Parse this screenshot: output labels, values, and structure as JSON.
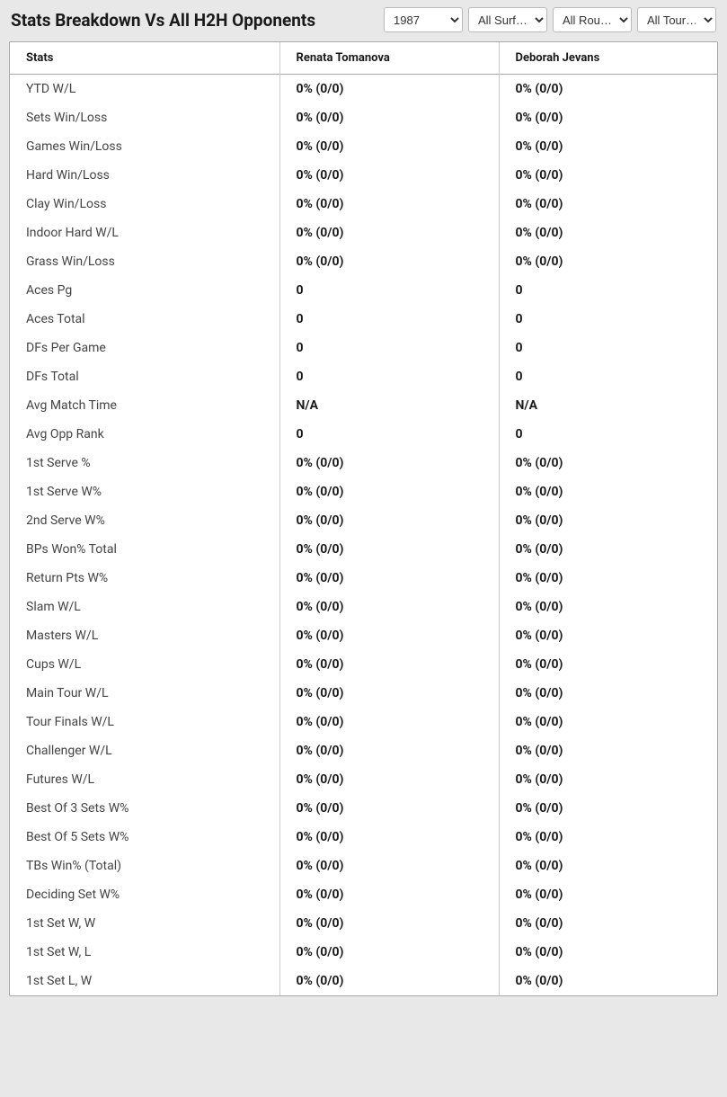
{
  "header": {
    "title": "Stats Breakdown Vs All H2H Opponents"
  },
  "filters": {
    "year": "1987",
    "surface": "All Surf…",
    "round": "All Rou…",
    "tournament": "All Tour…"
  },
  "table": {
    "columns": [
      "Stats",
      "Renata Tomanova",
      "Deborah Jevans"
    ],
    "rows": [
      {
        "stat": "YTD W/L",
        "p1": "0% (0/0)",
        "p2": "0% (0/0)"
      },
      {
        "stat": "Sets Win/Loss",
        "p1": "0% (0/0)",
        "p2": "0% (0/0)"
      },
      {
        "stat": "Games Win/Loss",
        "p1": "0% (0/0)",
        "p2": "0% (0/0)"
      },
      {
        "stat": "Hard Win/Loss",
        "p1": "0% (0/0)",
        "p2": "0% (0/0)"
      },
      {
        "stat": "Clay Win/Loss",
        "p1": "0% (0/0)",
        "p2": "0% (0/0)"
      },
      {
        "stat": "Indoor Hard W/L",
        "p1": "0% (0/0)",
        "p2": "0% (0/0)"
      },
      {
        "stat": "Grass Win/Loss",
        "p1": "0% (0/0)",
        "p2": "0% (0/0)"
      },
      {
        "stat": "Aces Pg",
        "p1": "0",
        "p2": "0"
      },
      {
        "stat": "Aces Total",
        "p1": "0",
        "p2": "0"
      },
      {
        "stat": "DFs Per Game",
        "p1": "0",
        "p2": "0"
      },
      {
        "stat": "DFs Total",
        "p1": "0",
        "p2": "0"
      },
      {
        "stat": "Avg Match Time",
        "p1": "N/A",
        "p2": "N/A"
      },
      {
        "stat": "Avg Opp Rank",
        "p1": "0",
        "p2": "0"
      },
      {
        "stat": "1st Serve %",
        "p1": "0% (0/0)",
        "p2": "0% (0/0)"
      },
      {
        "stat": "1st Serve W%",
        "p1": "0% (0/0)",
        "p2": "0% (0/0)"
      },
      {
        "stat": "2nd Serve W%",
        "p1": "0% (0/0)",
        "p2": "0% (0/0)"
      },
      {
        "stat": "BPs Won% Total",
        "p1": "0% (0/0)",
        "p2": "0% (0/0)"
      },
      {
        "stat": "Return Pts W%",
        "p1": "0% (0/0)",
        "p2": "0% (0/0)"
      },
      {
        "stat": "Slam W/L",
        "p1": "0% (0/0)",
        "p2": "0% (0/0)"
      },
      {
        "stat": "Masters W/L",
        "p1": "0% (0/0)",
        "p2": "0% (0/0)"
      },
      {
        "stat": "Cups W/L",
        "p1": "0% (0/0)",
        "p2": "0% (0/0)"
      },
      {
        "stat": "Main Tour W/L",
        "p1": "0% (0/0)",
        "p2": "0% (0/0)"
      },
      {
        "stat": "Tour Finals W/L",
        "p1": "0% (0/0)",
        "p2": "0% (0/0)"
      },
      {
        "stat": "Challenger W/L",
        "p1": "0% (0/0)",
        "p2": "0% (0/0)"
      },
      {
        "stat": "Futures W/L",
        "p1": "0% (0/0)",
        "p2": "0% (0/0)"
      },
      {
        "stat": "Best Of 3 Sets W%",
        "p1": "0% (0/0)",
        "p2": "0% (0/0)"
      },
      {
        "stat": "Best Of 5 Sets W%",
        "p1": "0% (0/0)",
        "p2": "0% (0/0)"
      },
      {
        "stat": "TBs Win% (Total)",
        "p1": "0% (0/0)",
        "p2": "0% (0/0)"
      },
      {
        "stat": "Deciding Set W%",
        "p1": "0% (0/0)",
        "p2": "0% (0/0)"
      },
      {
        "stat": "1st Set W, W",
        "p1": "0% (0/0)",
        "p2": "0% (0/0)"
      },
      {
        "stat": "1st Set W, L",
        "p1": "0% (0/0)",
        "p2": "0% (0/0)"
      },
      {
        "stat": "1st Set L, W",
        "p1": "0% (0/0)",
        "p2": "0% (0/0)"
      }
    ]
  },
  "styling": {
    "background_color": "#e8e8e8",
    "table_background": "#ffffff",
    "border_color": "#aaaaaa",
    "cell_border_color": "#cccccc",
    "header_text_color": "#1a1a1a",
    "stat_label_color": "#444444",
    "value_color": "#1a1a1a",
    "title_fontsize": 19,
    "header_fontsize": 13,
    "cell_fontsize": 14
  }
}
